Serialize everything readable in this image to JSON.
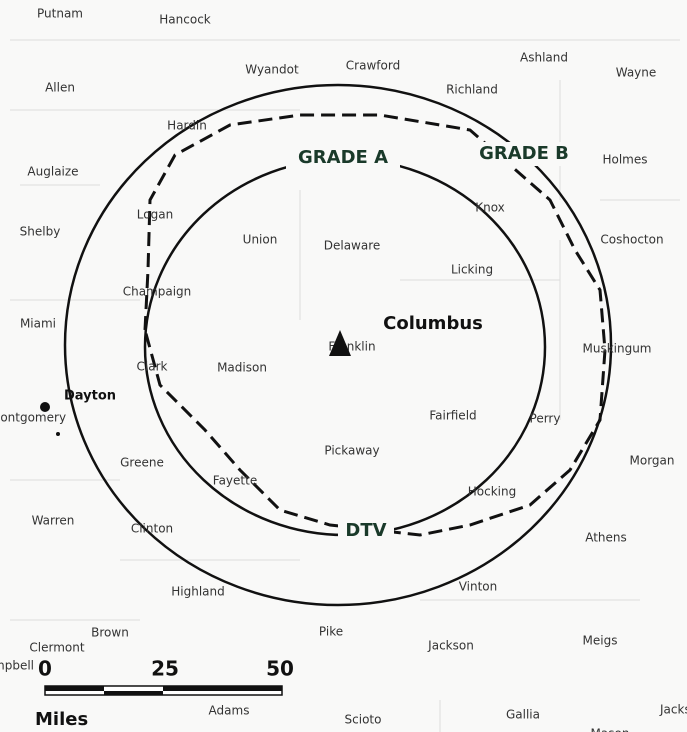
{
  "counties": [
    "Putnam",
    "Hancock",
    "Wyandot",
    "Crawford",
    "Ashland",
    "Wayne",
    "Allen",
    "Richland",
    "Hardin",
    "Holmes",
    "Auglaize",
    "Knox",
    "Logan",
    "Shelby",
    "Union",
    "Delaware",
    "Coshocton",
    "Licking",
    "Champaign",
    "Miami",
    "Franklin",
    "Muskingum",
    "Clark",
    "Madison",
    "Montgomery",
    "Fairfield",
    "Perry",
    "Greene",
    "Pickaway",
    "Morgan",
    "Fayette",
    "Hocking",
    "Warren",
    "Clinton",
    "Athens",
    "Vinton",
    "Highland",
    "Brown",
    "Pike",
    "Jackson",
    "Meigs",
    "Clermont",
    "Campbell",
    "Adams",
    "Scioto",
    "Gallia",
    "Mason",
    "Jackson"
  ],
  "cities": [
    "Columbus",
    "Dayton"
  ],
  "contours": {
    "grade_a": "GRADE A",
    "grade_b": "GRADE B",
    "dtv": "DTV"
  },
  "scale": {
    "labels": [
      "0",
      "25",
      "50"
    ],
    "unit": "Miles"
  }
}
